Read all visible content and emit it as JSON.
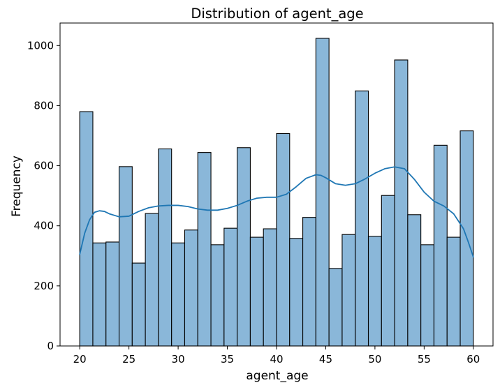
{
  "chart_data": {
    "type": "bar",
    "title": "Distribution of agent_age",
    "xlabel": "agent_age",
    "ylabel": "Frequency",
    "xlim": [
      18,
      62
    ],
    "ylim": [
      0,
      1075
    ],
    "xticks": [
      20,
      25,
      30,
      35,
      40,
      45,
      50,
      55,
      60
    ],
    "yticks": [
      0,
      200,
      400,
      600,
      800,
      1000
    ],
    "grid": false,
    "bar_color": "#8ab7d9",
    "bar_edge_color": "#000000",
    "kde_color": "#1f77b4",
    "bins": [
      {
        "start": 20.0,
        "end": 21.3333,
        "count": 780
      },
      {
        "start": 21.3333,
        "end": 22.6667,
        "count": 343
      },
      {
        "start": 22.6667,
        "end": 24.0,
        "count": 346
      },
      {
        "start": 24.0,
        "end": 25.3333,
        "count": 597
      },
      {
        "start": 25.3333,
        "end": 26.6667,
        "count": 276
      },
      {
        "start": 26.6667,
        "end": 28.0,
        "count": 441
      },
      {
        "start": 28.0,
        "end": 29.3333,
        "count": 656
      },
      {
        "start": 29.3333,
        "end": 30.6667,
        "count": 343
      },
      {
        "start": 30.6667,
        "end": 32.0,
        "count": 386
      },
      {
        "start": 32.0,
        "end": 33.3333,
        "count": 644
      },
      {
        "start": 33.3333,
        "end": 34.6667,
        "count": 337
      },
      {
        "start": 34.6667,
        "end": 36.0,
        "count": 392
      },
      {
        "start": 36.0,
        "end": 37.3333,
        "count": 660
      },
      {
        "start": 37.3333,
        "end": 38.6667,
        "count": 362
      },
      {
        "start": 38.6667,
        "end": 40.0,
        "count": 390
      },
      {
        "start": 40.0,
        "end": 41.3333,
        "count": 707
      },
      {
        "start": 41.3333,
        "end": 42.6667,
        "count": 358
      },
      {
        "start": 42.6667,
        "end": 44.0,
        "count": 428
      },
      {
        "start": 44.0,
        "end": 45.3333,
        "count": 1024
      },
      {
        "start": 45.3333,
        "end": 46.6667,
        "count": 258
      },
      {
        "start": 46.6667,
        "end": 48.0,
        "count": 371
      },
      {
        "start": 48.0,
        "end": 49.3333,
        "count": 849
      },
      {
        "start": 49.3333,
        "end": 50.6667,
        "count": 365
      },
      {
        "start": 50.6667,
        "end": 52.0,
        "count": 501
      },
      {
        "start": 52.0,
        "end": 53.3333,
        "count": 952
      },
      {
        "start": 53.3333,
        "end": 54.6667,
        "count": 437
      },
      {
        "start": 54.6667,
        "end": 56.0,
        "count": 337
      },
      {
        "start": 56.0,
        "end": 57.3333,
        "count": 668
      },
      {
        "start": 57.3333,
        "end": 58.6667,
        "count": 362
      },
      {
        "start": 58.6667,
        "end": 60.0,
        "count": 716
      }
    ],
    "kde_line": {
      "x": [
        20,
        20.5,
        21,
        21.5,
        22,
        22.5,
        23,
        24,
        25,
        26,
        27,
        28,
        29,
        30,
        31,
        32,
        33,
        34,
        35,
        36,
        37,
        38,
        39,
        40,
        41,
        42,
        43,
        44,
        44.5,
        45,
        46,
        47,
        48,
        49,
        50,
        51,
        52,
        53,
        54,
        55,
        56,
        57,
        58,
        58.5,
        59,
        59.5,
        60
      ],
      "y": [
        305,
        375,
        420,
        445,
        450,
        448,
        440,
        430,
        432,
        448,
        460,
        466,
        468,
        468,
        464,
        456,
        452,
        452,
        458,
        468,
        482,
        492,
        495,
        495,
        505,
        530,
        558,
        570,
        568,
        560,
        540,
        535,
        540,
        556,
        575,
        590,
        596,
        590,
        555,
        512,
        482,
        466,
        440,
        415,
        390,
        345,
        296
      ]
    }
  }
}
